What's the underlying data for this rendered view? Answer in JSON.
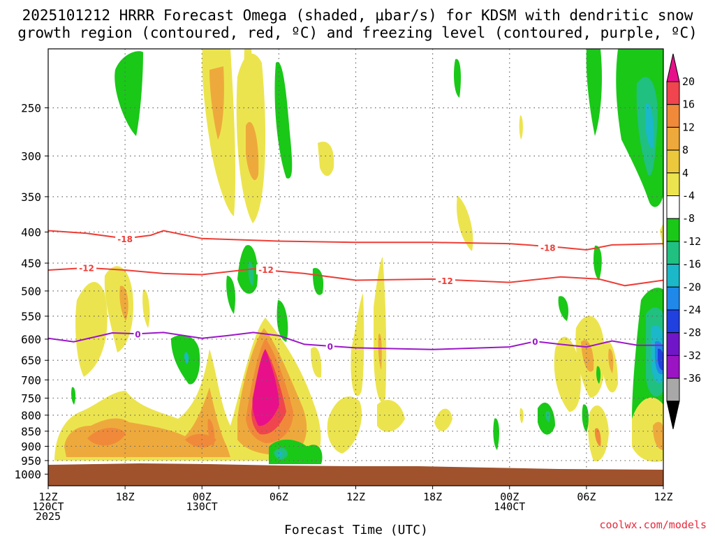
{
  "chart_data": {
    "type": "heatmap",
    "title_lines": [
      "2025101212 HRRR Forecast Omega (shaded, μbar/s) for KDSM with dendritic snow",
      "growth region (contoured, red, ºC) and freezing level (contoured, purple, ºC)"
    ],
    "xlabel": "Forecast Time (UTC)",
    "ylabel": "",
    "x_ticks": [
      {
        "hour": 0,
        "lines": [
          "12Z",
          "120CT",
          "2025"
        ]
      },
      {
        "hour": 6,
        "lines": [
          "18Z"
        ]
      },
      {
        "hour": 12,
        "lines": [
          "00Z",
          "130CT"
        ]
      },
      {
        "hour": 18,
        "lines": [
          "06Z"
        ]
      },
      {
        "hour": 24,
        "lines": [
          "12Z"
        ]
      },
      {
        "hour": 30,
        "lines": [
          "18Z"
        ]
      },
      {
        "hour": 36,
        "lines": [
          "00Z",
          "140CT"
        ]
      },
      {
        "hour": 42,
        "lines": [
          "06Z"
        ]
      },
      {
        "hour": 48,
        "lines": [
          "12Z"
        ]
      }
    ],
    "y_ticks": [
      "250",
      "300",
      "350",
      "400",
      "450",
      "500",
      "550",
      "600",
      "650",
      "700",
      "750",
      "800",
      "850",
      "900",
      "950",
      "1000"
    ],
    "y_axis": {
      "type": "log-pressure",
      "top_hPa": 200,
      "bottom_hPa": 1045
    },
    "x_range_hours": [
      0,
      48
    ],
    "colorbar": {
      "tick_labels": [
        "20",
        "16",
        "12",
        "8",
        "4",
        "-4",
        "-8",
        "-12",
        "-16",
        "-20",
        "-24",
        "-28",
        "-32",
        "-36"
      ],
      "colors": [
        "#e7108a",
        "#f0454e",
        "#f08a3a",
        "#eea93c",
        "#ecc93c",
        "#ece44e",
        "#ffffff",
        "#1ac818",
        "#20c080",
        "#1ab8c8",
        "#2088e8",
        "#2040e0",
        "#7016c8",
        "#9a14c4",
        "#a8a8a8",
        "#000000"
      ]
    },
    "contours": [
      {
        "name": "dgz-minus18",
        "label": "-18",
        "color": "#ee3d36",
        "points": [
          [
            0,
            398
          ],
          [
            3,
            402
          ],
          [
            6,
            410
          ],
          [
            8,
            405
          ],
          [
            9,
            398
          ],
          [
            12,
            410
          ],
          [
            18,
            414
          ],
          [
            24,
            416
          ],
          [
            30,
            416
          ],
          [
            36,
            418
          ],
          [
            40,
            424
          ],
          [
            42,
            428
          ],
          [
            44,
            420
          ],
          [
            48,
            418
          ]
        ],
        "label_at": [
          [
            6,
            410
          ],
          [
            39,
            424
          ]
        ]
      },
      {
        "name": "dgz-minus12",
        "label": "-12",
        "color": "#ee3d36",
        "points": [
          [
            0,
            462
          ],
          [
            3,
            458
          ],
          [
            6,
            462
          ],
          [
            9,
            468
          ],
          [
            12,
            470
          ],
          [
            16,
            460
          ],
          [
            20,
            468
          ],
          [
            24,
            480
          ],
          [
            30,
            478
          ],
          [
            36,
            484
          ],
          [
            40,
            474
          ],
          [
            43,
            478
          ],
          [
            45,
            490
          ],
          [
            48,
            480
          ]
        ],
        "label_at": [
          [
            3,
            458
          ],
          [
            17,
            461
          ],
          [
            31,
            481
          ]
        ]
      },
      {
        "name": "freezing-level",
        "label": "0",
        "color": "#9b16c8",
        "points": [
          [
            0,
            598
          ],
          [
            2,
            606
          ],
          [
            5,
            586
          ],
          [
            7,
            588
          ],
          [
            9,
            585
          ],
          [
            12,
            598
          ],
          [
            14,
            592
          ],
          [
            16,
            585
          ],
          [
            18,
            592
          ],
          [
            20,
            612
          ],
          [
            24,
            620
          ],
          [
            30,
            624
          ],
          [
            36,
            618
          ],
          [
            38,
            605
          ],
          [
            40,
            612
          ],
          [
            42,
            618
          ],
          [
            44,
            604
          ],
          [
            46,
            614
          ],
          [
            48,
            614
          ]
        ],
        "label_at": [
          [
            7,
            588
          ],
          [
            22,
            616
          ],
          [
            38,
            605
          ]
        ]
      }
    ]
  },
  "ground_label": "",
  "credit": "coolwx.com/models"
}
